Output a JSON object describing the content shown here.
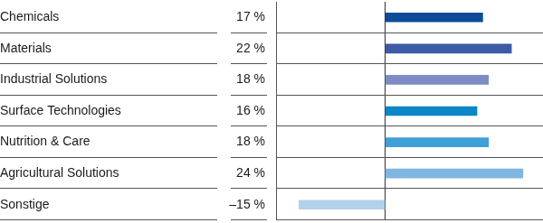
{
  "chart_data": {
    "type": "bar",
    "orientation": "horizontal",
    "categories": [
      "Chemicals",
      "Materials",
      "Industrial Solutions",
      "Surface Technologies",
      "Nutrition & Care",
      "Agricultural Solutions",
      "Sonstige"
    ],
    "values": [
      17,
      22,
      18,
      16,
      18,
      24,
      -15
    ],
    "value_labels": [
      "17 %",
      "22 %",
      "18 %",
      "16 %",
      "18 %",
      "24 %",
      "–15 %"
    ],
    "colors": [
      "#0d4c97",
      "#3d5aa6",
      "#7d8cc4",
      "#0b86c6",
      "#3f9fd7",
      "#80b6e2",
      "#b3d0ec"
    ],
    "xlim": [
      -19,
      27.5
    ],
    "xticks": [
      0
    ],
    "grid": true,
    "tick_labels": false,
    "data_labels": true
  }
}
